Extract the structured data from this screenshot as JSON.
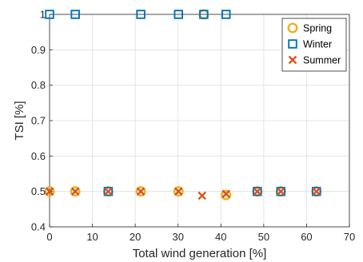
{
  "chart_data": {
    "type": "scatter",
    "title": "",
    "xlabel": "Total wind generation [%]",
    "ylabel": "TSI [%]",
    "xlim": [
      0,
      70
    ],
    "ylim": [
      0.4,
      1.0
    ],
    "xticks": [
      0,
      10,
      20,
      30,
      40,
      50,
      60,
      70
    ],
    "yticks": [
      0.4,
      0.5,
      0.6,
      0.7,
      0.8,
      0.9,
      1.0
    ],
    "xtick_labels": [
      "0",
      "10",
      "20",
      "30",
      "40",
      "50",
      "60",
      "70"
    ],
    "ytick_labels": [
      "0.4",
      "0.5",
      "0.6",
      "0.7",
      "0.8",
      "0.9",
      "1"
    ],
    "grid": true,
    "legend_position": "top-right",
    "series": [
      {
        "name": "Spring",
        "marker": "circle",
        "color": "#EDB120",
        "points": [
          [
            0,
            0.5
          ],
          [
            6,
            0.5
          ],
          [
            13.7,
            0.5
          ],
          [
            21.3,
            0.5
          ],
          [
            30.1,
            0.5
          ],
          [
            36,
            1.0
          ],
          [
            41.2,
            0.49
          ],
          [
            48.5,
            0.5
          ],
          [
            54,
            0.5
          ],
          [
            62.3,
            0.5
          ]
        ]
      },
      {
        "name": "Winter",
        "marker": "square",
        "color": "#0072BD",
        "points": [
          [
            0,
            1.0
          ],
          [
            6,
            1.0
          ],
          [
            13.7,
            0.5
          ],
          [
            21.3,
            1.0
          ],
          [
            30.1,
            1.0
          ],
          [
            36,
            1.0
          ],
          [
            41.2,
            1.0
          ],
          [
            48.5,
            0.5
          ],
          [
            54,
            0.5
          ],
          [
            62.3,
            0.5
          ]
        ]
      },
      {
        "name": "Summer",
        "marker": "x",
        "color": "#D95319",
        "points": [
          [
            0,
            0.5
          ],
          [
            6,
            0.5
          ],
          [
            13.7,
            0.5
          ],
          [
            21.3,
            0.5
          ],
          [
            30.1,
            0.5
          ],
          [
            35.6,
            0.488
          ],
          [
            41.2,
            0.493
          ],
          [
            48.5,
            0.5
          ],
          [
            54,
            0.5
          ],
          [
            62.3,
            0.5
          ]
        ]
      }
    ]
  }
}
